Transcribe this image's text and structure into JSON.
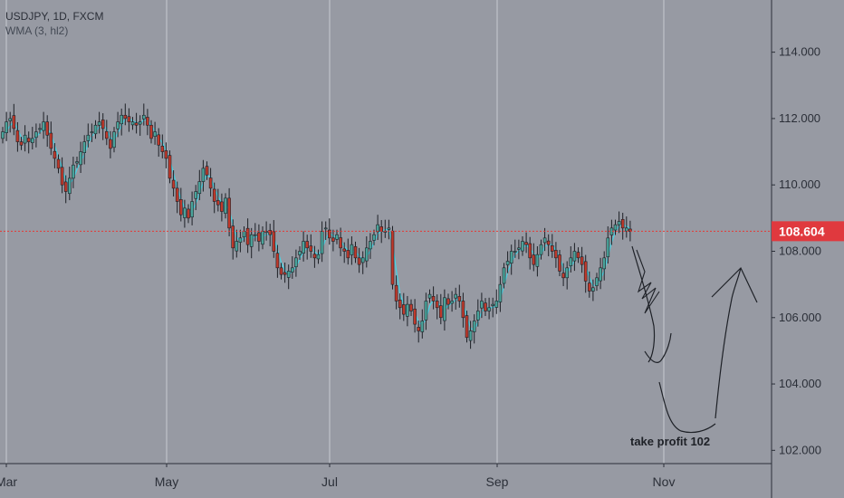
{
  "chart_data": {
    "type": "candlestick",
    "title": "USDJPY, 1D, FXCM",
    "indicator": "WMA (3, hl2)",
    "y_axis": {
      "ticks": [
        "114.000",
        "112.000",
        "110.000",
        "108.000",
        "106.000",
        "104.000",
        "102.000"
      ],
      "range": [
        101.6,
        115.3
      ]
    },
    "x_axis": {
      "ticks": [
        "Mar",
        "May",
        "Jul",
        "Sep",
        "Nov"
      ]
    },
    "last_price": "108.604",
    "closes": [
      111.6,
      111.9,
      112.0,
      111.7,
      111.3,
      111.2,
      111.5,
      111.3,
      111.4,
      111.6,
      111.7,
      111.9,
      111.5,
      111.1,
      110.8,
      110.5,
      110.0,
      109.8,
      110.2,
      110.6,
      110.7,
      111.0,
      111.3,
      111.5,
      111.6,
      111.8,
      111.9,
      111.7,
      111.4,
      111.1,
      111.6,
      111.9,
      112.1,
      112.0,
      111.9,
      111.9,
      111.8,
      111.9,
      112.1,
      111.8,
      111.4,
      111.6,
      111.2,
      111.0,
      110.8,
      110.2,
      109.9,
      109.5,
      109.1,
      109.3,
      109.0,
      109.5,
      109.8,
      110.1,
      110.5,
      110.3,
      109.9,
      109.5,
      109.4,
      109.2,
      109.6,
      108.7,
      108.1,
      108.3,
      108.4,
      108.6,
      108.2,
      108.5,
      108.5,
      108.3,
      108.6,
      108.6,
      108.5,
      108.0,
      107.5,
      107.3,
      107.3,
      107.4,
      107.5,
      107.8,
      108.0,
      108.3,
      108.1,
      108.0,
      107.8,
      107.9,
      108.6,
      108.7,
      108.4,
      108.3,
      108.5,
      108.1,
      108.0,
      107.8,
      108.2,
      107.8,
      107.6,
      107.8,
      108.1,
      108.3,
      108.5,
      108.8,
      108.6,
      108.6,
      108.7,
      107.0,
      106.5,
      106.3,
      106.1,
      106.4,
      106.2,
      105.8,
      105.6,
      105.9,
      106.5,
      106.7,
      106.5,
      106.3,
      106.0,
      106.6,
      106.4,
      106.5,
      106.7,
      106.5,
      106.0,
      105.4,
      105.6,
      105.9,
      106.2,
      106.5,
      106.2,
      106.3,
      106.4,
      106.5,
      107.0,
      107.5,
      107.7,
      108.0,
      108.0,
      108.1,
      108.3,
      108.2,
      107.8,
      107.6,
      107.9,
      108.2,
      108.4,
      108.2,
      108.0,
      107.8,
      107.4,
      107.2,
      107.5,
      107.8,
      108.0,
      107.8,
      107.6,
      107.1,
      106.8,
      106.9,
      107.2,
      107.5,
      107.8,
      108.4,
      108.7,
      108.8,
      108.9,
      108.7,
      108.7,
      108.6
    ],
    "y_min_label": "102.000",
    "annotation": "take profit 102"
  },
  "colors": {
    "up": "#4aa39a",
    "down": "#c0392b",
    "wma": "#45d6e6",
    "grid": "#c7cbd2",
    "price_line": "#e53935",
    "label_bg": "#e0393e"
  }
}
